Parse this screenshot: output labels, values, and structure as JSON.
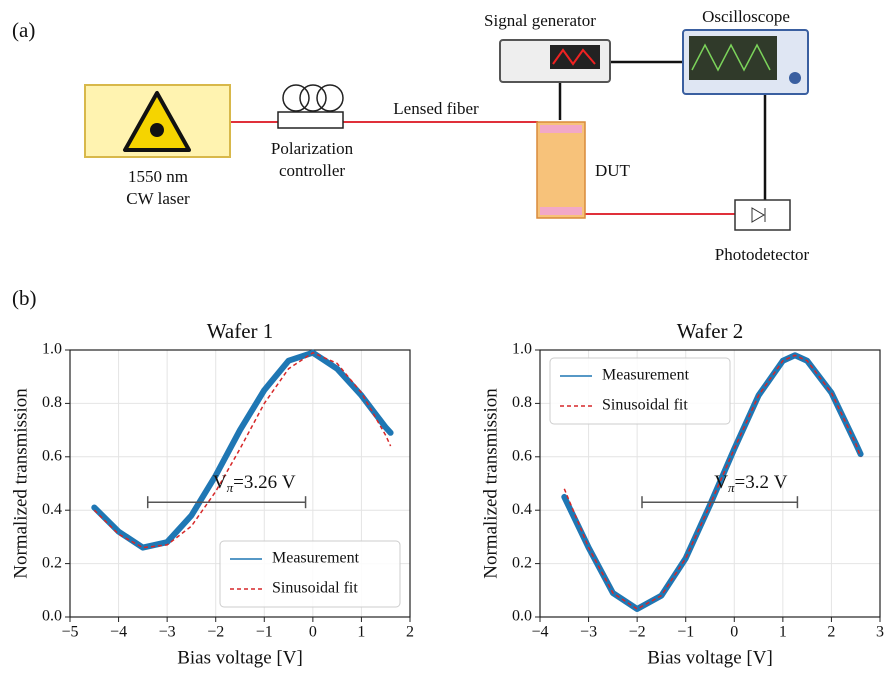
{
  "panel_a": {
    "label": "(a)",
    "laser": [
      "1550 nm",
      "CW laser"
    ],
    "polarization_controller": [
      "Polarization",
      "controller"
    ],
    "fiber": "Lensed fiber",
    "signal_generator": "Signal generator",
    "oscilloscope": "Oscilloscope",
    "dut": "DUT",
    "photodetector": "Photodetector"
  },
  "panel_b": {
    "label": "(b)"
  },
  "chart_data": [
    {
      "type": "line",
      "title": "Wafer 1",
      "xlabel": "Bias voltage [V]",
      "ylabel": "Normalized transmission",
      "x": [
        -4.5,
        -4,
        -3.5,
        -3,
        -2.5,
        -2,
        -1.5,
        -1,
        -0.5,
        0,
        0.5,
        1,
        1.5,
        1.6
      ],
      "series": [
        {
          "name": "Measurement",
          "color": "#1f77b4",
          "values": [
            0.41,
            0.32,
            0.26,
            0.28,
            0.38,
            0.53,
            0.7,
            0.85,
            0.96,
            0.99,
            0.93,
            0.83,
            0.71,
            0.69
          ]
        },
        {
          "name": "Sinusoidal fit",
          "color": "#d62728",
          "values": [
            0.4,
            0.31,
            0.26,
            0.27,
            0.34,
            0.47,
            0.63,
            0.8,
            0.93,
            0.99,
            0.95,
            0.84,
            0.68,
            0.64
          ]
        }
      ],
      "xlim": [
        -5,
        2
      ],
      "xticks": [
        {
          "value": -5,
          "label": "−5"
        },
        {
          "value": -4,
          "label": "−4"
        },
        {
          "value": -3,
          "label": "−3"
        },
        {
          "value": -2,
          "label": "−2"
        },
        {
          "value": -1,
          "label": "−1"
        },
        0,
        1,
        2
      ],
      "ylim": [
        0,
        1
      ],
      "yticks": [
        {
          "value": 0,
          "label": "0.0"
        },
        0.2,
        0.4,
        0.6,
        0.8,
        {
          "value": 1,
          "label": "1.0"
        }
      ],
      "grid": true,
      "legend": "lower right",
      "annotation": {
        "symbol": "V",
        "subscript": "π",
        "text": "=3.26 V",
        "span": [
          -3.4,
          -0.15
        ],
        "span_y": 0.43
      }
    },
    {
      "type": "line",
      "title": "Wafer 2",
      "xlabel": "Bias voltage [V]",
      "ylabel": "Normalized transmission",
      "x": [
        -3.5,
        -3,
        -2.5,
        -2,
        -1.5,
        -1,
        -0.5,
        0,
        0.5,
        1,
        1.25,
        1.5,
        2,
        2.5,
        2.6
      ],
      "series": [
        {
          "name": "Measurement",
          "color": "#1f77b4",
          "values": [
            0.45,
            0.26,
            0.09,
            0.03,
            0.08,
            0.22,
            0.42,
            0.63,
            0.83,
            0.96,
            0.98,
            0.96,
            0.84,
            0.65,
            0.61
          ]
        },
        {
          "name": "Sinusoidal fit",
          "color": "#d62728",
          "values": [
            0.48,
            0.26,
            0.09,
            0.03,
            0.08,
            0.22,
            0.42,
            0.63,
            0.83,
            0.96,
            0.98,
            0.96,
            0.84,
            0.65,
            0.6
          ]
        }
      ],
      "xlim": [
        -4,
        3
      ],
      "xticks": [
        {
          "value": -4,
          "label": "−4"
        },
        {
          "value": -3,
          "label": "−3"
        },
        {
          "value": -2,
          "label": "−2"
        },
        {
          "value": -1,
          "label": "−1"
        },
        0,
        1,
        2,
        3
      ],
      "ylim": [
        0,
        1
      ],
      "yticks": [
        {
          "value": 0,
          "label": "0.0"
        },
        0.2,
        0.4,
        0.6,
        0.8,
        {
          "value": 1,
          "label": "1.0"
        }
      ],
      "grid": true,
      "legend": "upper left",
      "annotation": {
        "symbol": "V",
        "subscript": "π",
        "text": "=3.2 V",
        "span": [
          -1.9,
          1.3
        ],
        "span_y": 0.43
      }
    }
  ]
}
